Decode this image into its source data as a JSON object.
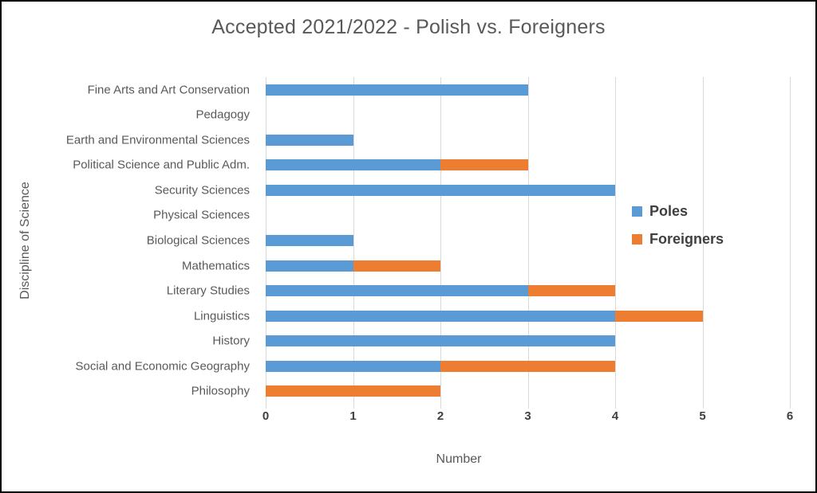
{
  "chart_data": {
    "type": "bar",
    "orientation": "horizontal",
    "stacked": true,
    "title": "Accepted 2021/2022 - Polish vs. Foreigners",
    "xlabel": "Number",
    "ylabel": "Discipline of Science",
    "xlim": [
      0,
      6
    ],
    "xticks": [
      "0",
      "1",
      "2",
      "3",
      "4",
      "5",
      "6"
    ],
    "grid": true,
    "legend_position": "right-inside",
    "categories": [
      "Fine Arts and Art Conservation",
      "Pedagogy",
      "Earth and Environmental Sciences",
      "Political Science and Public Adm.",
      "Security Sciences",
      "Physical Sciences",
      "Biological Sciences",
      "Mathematics",
      "Literary Studies",
      "Linguistics",
      "History",
      "Social and Economic Geography",
      "Philosophy"
    ],
    "series": [
      {
        "name": "Poles",
        "color": "#5B9BD5",
        "values": [
          3,
          0,
          1,
          2,
          4,
          0,
          1,
          1,
          3,
          4,
          4,
          2,
          0
        ]
      },
      {
        "name": "Foreigners",
        "color": "#ED7D31",
        "values": [
          0,
          0,
          0,
          1,
          0,
          0,
          0,
          1,
          1,
          1,
          0,
          2,
          2
        ]
      }
    ]
  },
  "colors": {
    "gridline": "#D9D9D9",
    "title_text": "#595959",
    "axis_text": "#595959",
    "tick_text": "#404040",
    "legend_text": "#404040",
    "frame_border": "#000000",
    "background": "#FFFFFF"
  }
}
